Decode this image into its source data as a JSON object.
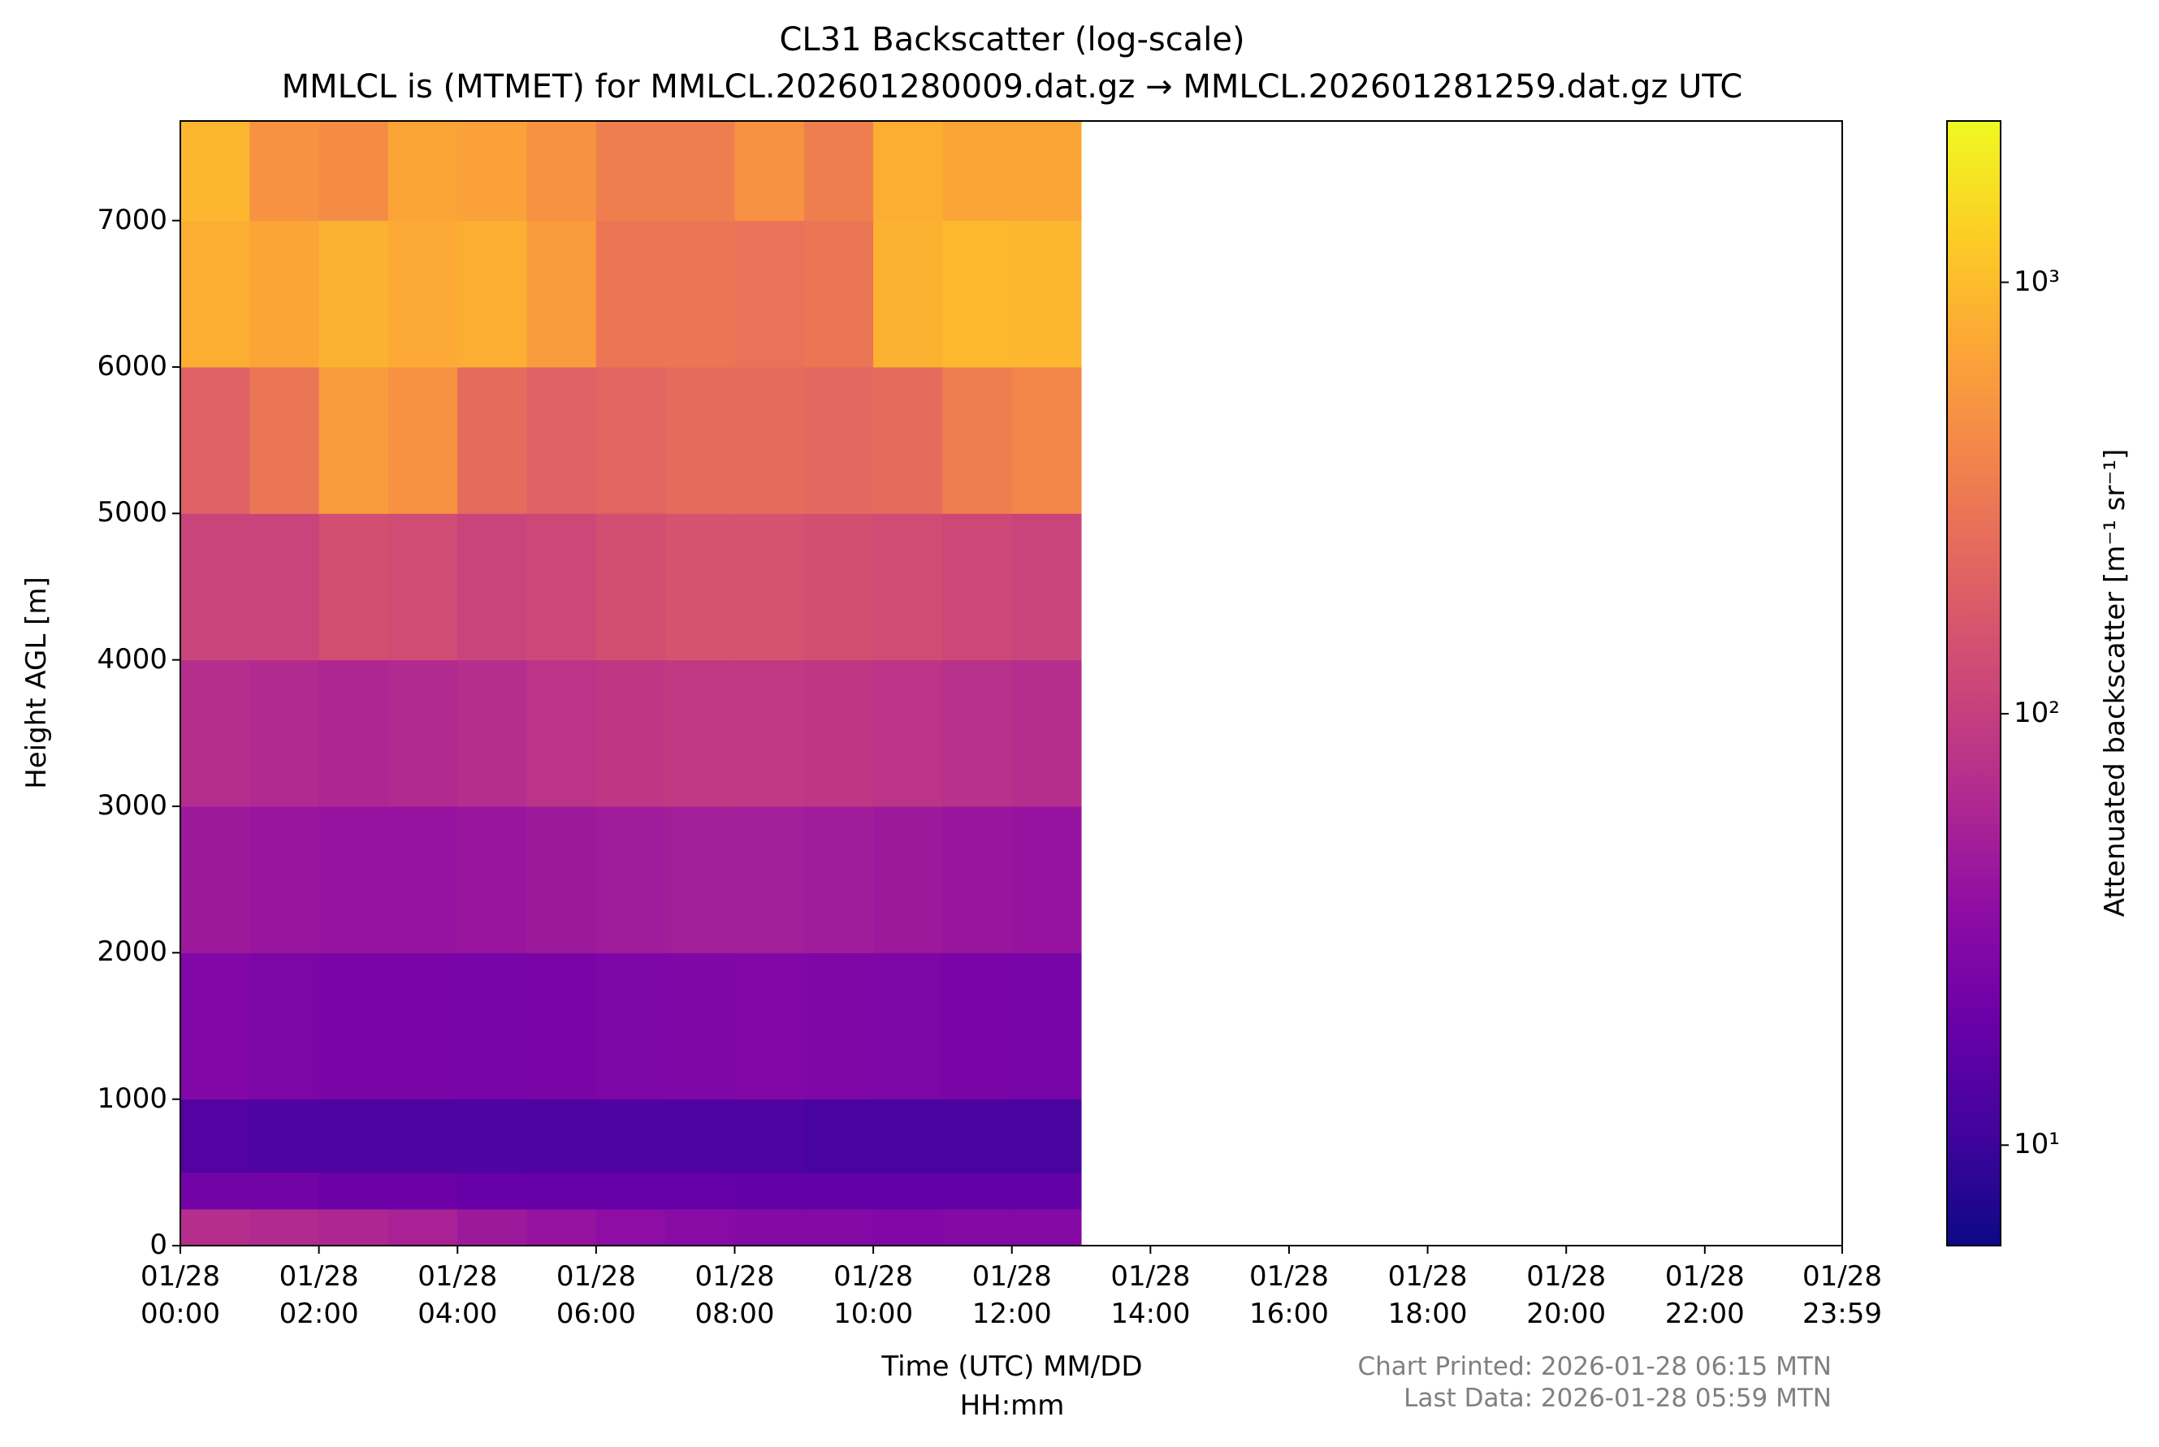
{
  "chart_data": {
    "type": "heatmap",
    "title": "CL31 Backscatter (log-scale)",
    "subtitle": "MMLCL is (MTMET) for MMLCL.202601280009.dat.gz → MMLCL.202601281259.dat.gz UTC",
    "x_label": "Time (UTC) MM/DD\nHH:mm",
    "y_label": "Height AGL [m]",
    "colorbar_label": "Attenuated backscatter [m⁻¹ sr⁻¹]",
    "footnotes": [
      "Chart Printed: 2026-01-28 06:15 MTN",
      "Last Data: 2026-01-28 05:59 MTN"
    ],
    "colormap": "plasma",
    "color_scale": "log",
    "xlim": [
      0,
      23.983
    ],
    "ylim": [
      0,
      7680
    ],
    "xticks": [
      {
        "value": 0,
        "label": "01/28\n00:00"
      },
      {
        "value": 2,
        "label": "01/28\n02:00"
      },
      {
        "value": 4,
        "label": "01/28\n04:00"
      },
      {
        "value": 6,
        "label": "01/28\n06:00"
      },
      {
        "value": 8,
        "label": "01/28\n08:00"
      },
      {
        "value": 10,
        "label": "01/28\n10:00"
      },
      {
        "value": 12,
        "label": "01/28\n12:00"
      },
      {
        "value": 14,
        "label": "01/28\n14:00"
      },
      {
        "value": 16,
        "label": "01/28\n16:00"
      },
      {
        "value": 18,
        "label": "01/28\n18:00"
      },
      {
        "value": 20,
        "label": "01/28\n20:00"
      },
      {
        "value": 22,
        "label": "01/28\n22:00"
      },
      {
        "value": 23.983,
        "label": "01/28\n23:59"
      }
    ],
    "yticks": [
      0,
      1000,
      2000,
      3000,
      4000,
      5000,
      6000,
      7000
    ],
    "clim": [
      5.85,
      2365
    ],
    "cticks": [
      {
        "value": 10,
        "label": "10¹"
      },
      {
        "value": 100,
        "label": "10²"
      },
      {
        "value": 1000,
        "label": "10³"
      }
    ],
    "x_edges": [
      0,
      1,
      2,
      3,
      4,
      5,
      6,
      7,
      8,
      9,
      10,
      11,
      12,
      13
    ],
    "y_edges": [
      0,
      250,
      500,
      1000,
      2000,
      3000,
      4000,
      5000,
      6000,
      7000,
      7680
    ],
    "z": [
      [
        70,
        65,
        60,
        55,
        45,
        40,
        35,
        32,
        30,
        30,
        28,
        30,
        30
      ],
      [
        22,
        22,
        20,
        20,
        19,
        18,
        18,
        18,
        17,
        17,
        17,
        17,
        17
      ],
      [
        14,
        13,
        13,
        13,
        13,
        13,
        13,
        13,
        13,
        12,
        12,
        12,
        12
      ],
      [
        28,
        26,
        25,
        25,
        24,
        25,
        26,
        27,
        28,
        27,
        26,
        25,
        24
      ],
      [
        45,
        42,
        40,
        40,
        42,
        45,
        48,
        50,
        50,
        48,
        45,
        42,
        40
      ],
      [
        70,
        65,
        60,
        65,
        70,
        80,
        85,
        90,
        90,
        85,
        80,
        75,
        70
      ],
      [
        110,
        110,
        140,
        130,
        110,
        120,
        140,
        150,
        150,
        140,
        130,
        120,
        110
      ],
      [
        200,
        300,
        600,
        500,
        250,
        200,
        220,
        250,
        250,
        230,
        250,
        350,
        400
      ],
      [
        800,
        700,
        850,
        750,
        800,
        600,
        300,
        300,
        280,
        300,
        850,
        950,
        900
      ],
      [
        900,
        500,
        450,
        700,
        650,
        500,
        350,
        350,
        500,
        350,
        800,
        700,
        700
      ]
    ]
  }
}
